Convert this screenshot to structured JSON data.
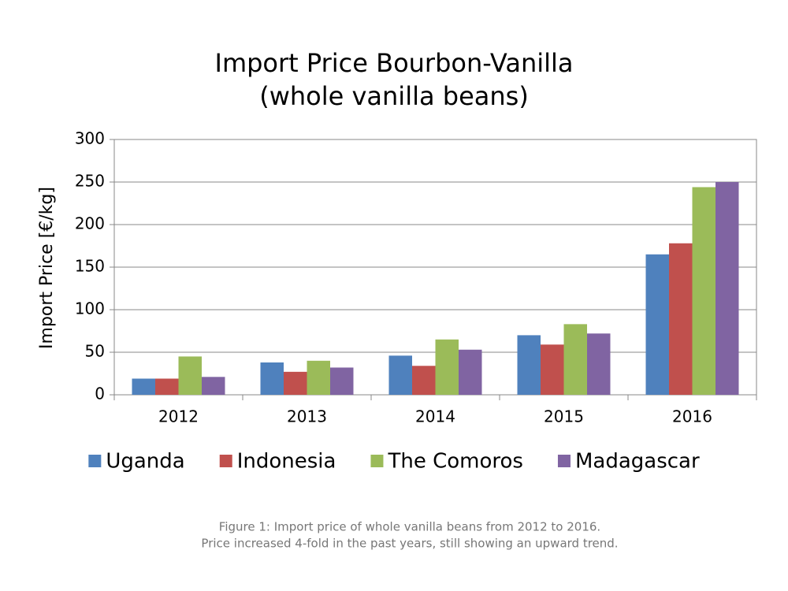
{
  "chart_data": {
    "type": "bar",
    "title": "Import Price Bourbon-Vanilla",
    "subtitle": "(whole vanilla beans)",
    "y_label": "Import Price [€/kg]",
    "categories": [
      "2012",
      "2013",
      "2014",
      "2015",
      "2016"
    ],
    "series": [
      {
        "name": "Uganda",
        "color": "#4f81bd",
        "values": [
          19,
          38,
          46,
          70,
          165
        ]
      },
      {
        "name": "Indonesia",
        "color": "#c0504d",
        "values": [
          19,
          27,
          34,
          59,
          178
        ]
      },
      {
        "name": "The Comoros",
        "color": "#9bbb59",
        "values": [
          45,
          40,
          65,
          83,
          244
        ]
      },
      {
        "name": "Madagascar",
        "color": "#8064a2",
        "values": [
          21,
          32,
          53,
          72,
          250
        ]
      }
    ],
    "ylim": [
      0,
      300
    ],
    "yticks": [
      0,
      50,
      100,
      150,
      200,
      250,
      300
    ],
    "grid": true,
    "legend": "bottom",
    "caption": [
      "Figure 1: Import price of whole vanilla beans from 2012 to 2016.",
      "Price increased 4-fold in the past years, still showing an upward trend."
    ]
  }
}
